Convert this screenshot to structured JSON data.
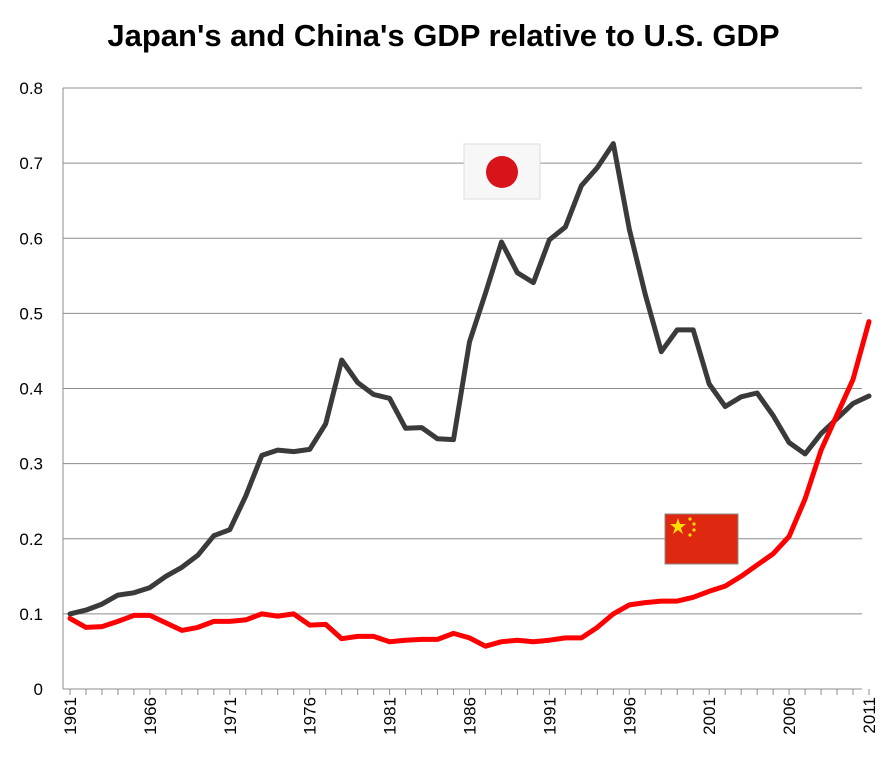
{
  "chart_data": {
    "type": "line",
    "title": "Japan's and China's GDP relative to U.S. GDP",
    "xlabel": "",
    "ylabel": "",
    "ylim": [
      0,
      0.8
    ],
    "xlim": [
      1961,
      2011
    ],
    "y_ticks": [
      "0",
      "0.1",
      "0.2",
      "0.3",
      "0.4",
      "0.5",
      "0.6",
      "0.7",
      "0.8"
    ],
    "x_tick_labels": [
      "1961",
      "1966",
      "1971",
      "1976",
      "1981",
      "1986",
      "1991",
      "1996",
      "2001",
      "2006",
      "2011"
    ],
    "grid": "horizontal",
    "legend": "none (flag icons near each series)",
    "x": [
      1961,
      1962,
      1963,
      1964,
      1965,
      1966,
      1967,
      1968,
      1969,
      1970,
      1971,
      1972,
      1973,
      1974,
      1975,
      1976,
      1977,
      1978,
      1979,
      1980,
      1981,
      1982,
      1983,
      1984,
      1985,
      1986,
      1987,
      1988,
      1989,
      1990,
      1991,
      1992,
      1993,
      1994,
      1995,
      1996,
      1997,
      1998,
      1999,
      2000,
      2001,
      2002,
      2003,
      2004,
      2005,
      2006,
      2007,
      2008,
      2009,
      2010,
      2011
    ],
    "series": [
      {
        "key": "japan",
        "color": "#3a3a3a",
        "flag": "japan-flag",
        "values": [
          0.1,
          0.105,
          0.113,
          0.125,
          0.128,
          0.135,
          0.15,
          0.162,
          0.178,
          0.204,
          0.212,
          0.257,
          0.311,
          0.318,
          0.316,
          0.319,
          0.353,
          0.438,
          0.408,
          0.392,
          0.387,
          0.347,
          0.348,
          0.333,
          0.332,
          0.462,
          0.527,
          0.595,
          0.554,
          0.541,
          0.598,
          0.615,
          0.67,
          0.694,
          0.726,
          0.612,
          0.525,
          0.449,
          0.478,
          0.478,
          0.406,
          0.376,
          0.389,
          0.394,
          0.364,
          0.328,
          0.313,
          0.34,
          0.36,
          0.38,
          0.39
        ]
      },
      {
        "key": "china",
        "color": "#ff0000",
        "flag": "china-flag",
        "values": [
          0.094,
          0.082,
          0.083,
          0.09,
          0.098,
          0.098,
          0.088,
          0.078,
          0.082,
          0.09,
          0.09,
          0.092,
          0.1,
          0.097,
          0.1,
          0.085,
          0.086,
          0.067,
          0.07,
          0.07,
          0.063,
          0.065,
          0.066,
          0.066,
          0.074,
          0.068,
          0.057,
          0.063,
          0.065,
          0.063,
          0.065,
          0.068,
          0.068,
          0.082,
          0.1,
          0.112,
          0.115,
          0.117,
          0.117,
          0.122,
          0.13,
          0.137,
          0.15,
          0.165,
          0.18,
          0.203,
          0.253,
          0.318,
          0.365,
          0.412,
          0.489
        ]
      }
    ]
  }
}
